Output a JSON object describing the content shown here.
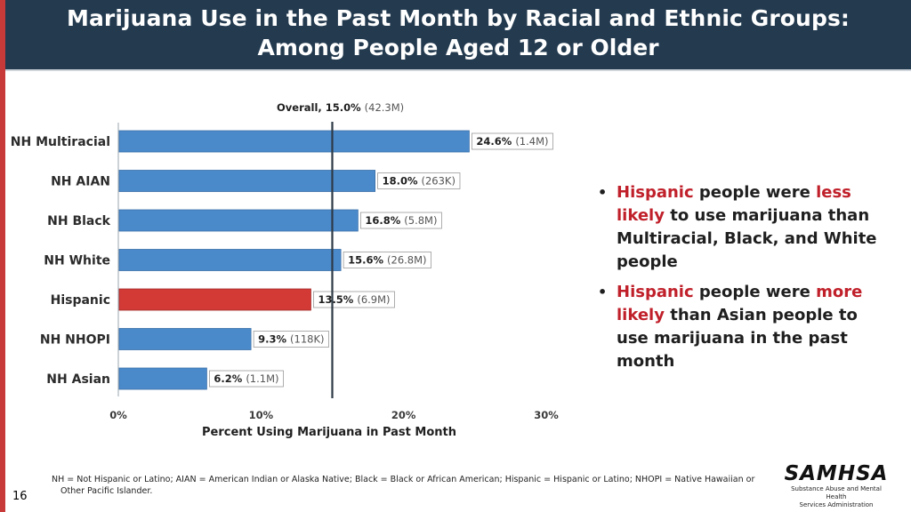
{
  "header": {
    "title_line1": "Marijuana Use in the Past Month by Racial and Ethnic Groups:",
    "title_line2": "Among People Aged 12 or Older"
  },
  "chart_data": {
    "type": "bar",
    "orientation": "horizontal",
    "categories": [
      "NH Multiracial",
      "NH AIAN",
      "NH Black",
      "NH White",
      "Hispanic",
      "NH NHOPI",
      "NH Asian"
    ],
    "values": [
      24.6,
      18.0,
      16.8,
      15.6,
      13.5,
      9.3,
      6.2
    ],
    "counts": [
      "1.4M",
      "263K",
      "5.8M",
      "26.8M",
      "6.9M",
      "118K",
      "1.1M"
    ],
    "value_labels": [
      "24.6%",
      "18.0%",
      "16.8%",
      "15.6%",
      "13.5%",
      "9.3%",
      "6.2%"
    ],
    "count_labels": [
      "(1.4M)",
      "(263K)",
      "(5.8M)",
      "(26.8M)",
      "(6.9M)",
      "(118K)",
      "(1.1M)"
    ],
    "highlight_category": "Hispanic",
    "colors": {
      "default": "#4a8acb",
      "highlight": "#d33a36",
      "reference_line": "#2e3b47"
    },
    "reference": {
      "value": 15.0,
      "label_bold": "Overall, 15.0%",
      "label_light": "(42.3M)"
    },
    "x_ticks": [
      0,
      10,
      20,
      30
    ],
    "x_tick_labels": [
      "0%",
      "10%",
      "20%",
      "30%"
    ],
    "xlim": [
      0,
      30
    ],
    "xlabel": "Percent Using Marijuana in Past Month"
  },
  "bullets": [
    {
      "p1": "Hispanic",
      "p2": " people were ",
      "p3": "less likely",
      "p4": " to use marijuana than Multiracial, Black, and White people"
    },
    {
      "p1": "Hispanic",
      "p2": " people were ",
      "p3": "more likely",
      "p4": " than Asian people to use marijuana in the past month"
    }
  ],
  "footnote": {
    "line1": "NH = Not Hispanic or Latino; AIAN = American Indian or Alaska Native; Black = Black or African American; Hispanic = Hispanic or Latino; NHOPI = Native Hawaiian or",
    "line2": "Other Pacific Islander."
  },
  "page_number": "16",
  "logo": {
    "name": "SAMHSA",
    "subtitle_line1": "Substance Abuse and Mental Health",
    "subtitle_line2": "Services Administration"
  }
}
